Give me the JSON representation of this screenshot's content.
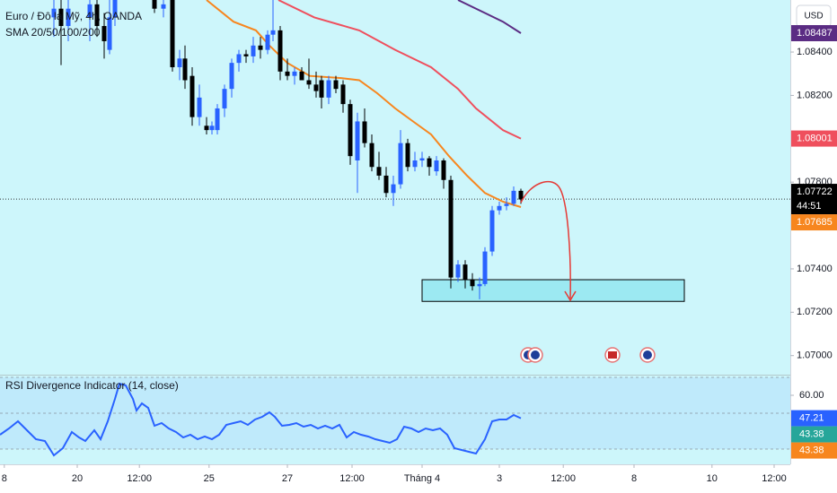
{
  "chart_data": [
    {
      "type": "candlestick",
      "title": "Euro / Đô la Mỹ, 4h, OANDA",
      "subtitle": "SMA 20/50/100/200",
      "currency": "USD",
      "countdown": "44:51",
      "xlim": [
        0,
        110
      ],
      "xticks": [
        {
          "value": 0.6,
          "label": "8"
        },
        {
          "value": 10.75,
          "label": "20"
        },
        {
          "value": 19.4,
          "label": "12:00"
        },
        {
          "value": 29.1,
          "label": "25"
        },
        {
          "value": 40,
          "label": "27"
        },
        {
          "value": 49,
          "label": "12:00"
        },
        {
          "value": 58.75,
          "label": "Tháng 4"
        },
        {
          "value": 69.5,
          "label": "3"
        },
        {
          "value": 78.4,
          "label": "12:00"
        },
        {
          "value": 88.25,
          "label": "8"
        },
        {
          "value": 99.1,
          "label": "10"
        },
        {
          "value": 107.75,
          "label": "12:00"
        }
      ],
      "ylim": [
        1.06912,
        1.0864
      ],
      "yticks": [
        {
          "value": 1.084,
          "label": "1.08400"
        },
        {
          "value": 1.082,
          "label": "1.08200"
        },
        {
          "value": 1.078,
          "label": "1.07800"
        },
        {
          "value": 1.074,
          "label": "1.07400"
        },
        {
          "value": 1.072,
          "label": "1.07200"
        },
        {
          "value": 1.07,
          "label": "1.07000"
        }
      ],
      "up_color": "#2962ff",
      "down_color": "#000000",
      "x": [
        7.5,
        8.5,
        9.5,
        12.5,
        13.5,
        14.5,
        15.25,
        16,
        21.5,
        22.75,
        24,
        25,
        25.75,
        26.75,
        27.75,
        28.75,
        29.5,
        30.25,
        31.25,
        32.25,
        33.25,
        34.25,
        35.25,
        36.25,
        37.25,
        38,
        39,
        40,
        41,
        42,
        43,
        44,
        44.75,
        45.75,
        46.75,
        47.75,
        48.75,
        49.75,
        50.75,
        51.75,
        52.75,
        53.75,
        54.75,
        55.75,
        56.75,
        57.75,
        58.75,
        59.75,
        60.75,
        61.75,
        62.75,
        63.75,
        64.75,
        65.75,
        66.75,
        67.5,
        68.5,
        69.5,
        70.5,
        71.5,
        72.5
      ],
      "open": [
        1.0856,
        1.086,
        1.0852,
        1.0856,
        1.0862,
        1.0852,
        1.0841,
        1.0856,
        1.0864,
        1.086,
        1.0864,
        1.0833,
        1.0837,
        1.0829,
        1.081,
        1.0806,
        1.0804,
        1.0804,
        1.0814,
        1.0823,
        1.0835,
        1.0839,
        1.0838,
        1.0843,
        1.0841,
        1.0848,
        1.085,
        1.0831,
        1.0829,
        1.0831,
        1.0827,
        1.0825,
        1.0827,
        1.0819,
        1.0827,
        1.0825,
        1.0816,
        1.079,
        1.0808,
        1.0798,
        1.0787,
        1.0783,
        1.0775,
        1.0779,
        1.0798,
        1.0787,
        1.079,
        1.0791,
        1.0785,
        1.079,
        1.0781,
        1.0736,
        1.0742,
        1.0735,
        1.0732,
        1.0733,
        1.0748,
        1.0767,
        1.0769,
        1.077,
        1.0776
      ],
      "high": [
        1.0864,
        1.0864,
        1.0864,
        1.0864,
        1.0864,
        1.0858,
        1.0864,
        1.0864,
        1.0864,
        1.0864,
        1.0864,
        1.0841,
        1.0843,
        1.0833,
        1.0825,
        1.081,
        1.0808,
        1.0816,
        1.0825,
        1.0837,
        1.0841,
        1.0841,
        1.0847,
        1.0847,
        1.085,
        1.0864,
        1.0852,
        1.0837,
        1.0833,
        1.0833,
        1.0837,
        1.0831,
        1.0829,
        1.0829,
        1.0829,
        1.0827,
        1.0818,
        1.0812,
        1.0814,
        1.0802,
        1.0794,
        1.0787,
        1.0783,
        1.0804,
        1.08,
        1.0794,
        1.0794,
        1.0792,
        1.0792,
        1.0791,
        1.0783,
        1.0744,
        1.0744,
        1.0738,
        1.0736,
        1.075,
        1.0769,
        1.0771,
        1.0773,
        1.0778,
        1.0777
      ],
      "low": [
        1.0847,
        1.0834,
        1.0845,
        1.0845,
        1.0847,
        1.0837,
        1.0839,
        1.0852,
        1.0858,
        1.0856,
        1.0831,
        1.0827,
        1.0823,
        1.0806,
        1.0806,
        1.0802,
        1.0802,
        1.0802,
        1.081,
        1.0819,
        1.0831,
        1.0835,
        1.0835,
        1.0837,
        1.0839,
        1.0845,
        1.0827,
        1.0827,
        1.0825,
        1.0827,
        1.0823,
        1.0819,
        1.0814,
        1.0816,
        1.0821,
        1.0812,
        1.0788,
        1.0775,
        1.0796,
        1.0785,
        1.0781,
        1.0773,
        1.0769,
        1.0777,
        1.0785,
        1.0785,
        1.0787,
        1.0783,
        1.0783,
        1.0777,
        1.0731,
        1.0734,
        1.0731,
        1.073,
        1.0726,
        1.0732,
        1.0746,
        1.0765,
        1.0767,
        1.0769,
        1.077
      ],
      "close": [
        1.086,
        1.0852,
        1.086,
        1.0862,
        1.0852,
        1.0845,
        1.0856,
        1.0864,
        1.086,
        1.0862,
        1.0833,
        1.0837,
        1.0827,
        1.081,
        1.0819,
        1.0804,
        1.0806,
        1.0814,
        1.0823,
        1.0835,
        1.0839,
        1.0838,
        1.0843,
        1.0841,
        1.0848,
        1.085,
        1.0831,
        1.0829,
        1.0831,
        1.0827,
        1.0825,
        1.0822,
        1.0819,
        1.0827,
        1.0823,
        1.0816,
        1.0792,
        1.0808,
        1.0798,
        1.0787,
        1.0783,
        1.0775,
        1.0779,
        1.0798,
        1.0787,
        1.079,
        1.0791,
        1.0787,
        1.079,
        1.0781,
        1.0736,
        1.0742,
        1.0735,
        1.0732,
        1.0733,
        1.0748,
        1.0767,
        1.0769,
        1.077,
        1.0776,
        1.0772
      ],
      "series": [
        {
          "color": "#f7861e",
          "x": [
            28.75,
            32.5,
            35.625,
            37.5,
            40,
            43.125,
            47.5,
            50,
            52.5,
            55,
            57.5,
            60,
            62.5,
            65,
            67.5,
            70,
            72.5
          ],
          "values": [
            1.0864,
            1.0854,
            1.085,
            1.0843,
            1.0835,
            1.0829,
            1.0828,
            1.0827,
            1.0821,
            1.0814,
            1.0808,
            1.0802,
            1.0792,
            1.0783,
            1.0775,
            1.0771,
            1.07685
          ]
        },
        {
          "color": "#ef4f5d",
          "x": [
            38.75,
            43.75,
            50,
            55,
            60,
            63.75,
            66.25,
            70,
            72.5
          ],
          "values": [
            1.0864,
            1.0856,
            1.085,
            1.0841,
            1.0833,
            1.0823,
            1.0814,
            1.0804,
            1.08001
          ]
        },
        {
          "color": "#5b2c83",
          "x": [
            63.75,
            67.5,
            70,
            72.5
          ],
          "values": [
            1.0864,
            1.0858,
            1.0854,
            1.08487
          ]
        }
      ],
      "last_price": 1.07722,
      "price_tags": [
        {
          "value": 1.08487,
          "color": "#5b2c83"
        },
        {
          "value": 1.08001,
          "color": "#ef4f5d"
        },
        {
          "value": 1.07722,
          "color": "#000000"
        },
        {
          "value": 1.07685,
          "color": "#f7861e"
        }
      ],
      "zone": {
        "xlim": [
          58.75,
          95.25
        ],
        "ylim": [
          1.0725,
          1.0735
        ],
        "color": "#9ce9f2"
      }
    },
    {
      "type": "line",
      "title": "RSI Divergence Indicator (14, close)",
      "ylim": [
        21.5,
        71.5
      ],
      "yticks": [
        {
          "value": 60,
          "label": "60.00"
        }
      ],
      "band": [
        30,
        70
      ],
      "midline": 50,
      "color": "#2962ff",
      "x": [
        0,
        1.25,
        2.5,
        3.75,
        5,
        6.25,
        7.5,
        8.75,
        10,
        11,
        11.875,
        13.125,
        14,
        15,
        16,
        16.625,
        17.5,
        18.5,
        19,
        19.75,
        20.625,
        21.5,
        22.5,
        23.5,
        24.5,
        25.5,
        26.5,
        27.5,
        28.5,
        29.5,
        30.5,
        31.5,
        32.5,
        33.5,
        34.5,
        35.5,
        36.5,
        37.5,
        38.25,
        39.25,
        40.25,
        41.25,
        42.25,
        43.25,
        44.25,
        45.25,
        46.25,
        47.25,
        48.25,
        49.25,
        50.25,
        51.25,
        52.25,
        53.25,
        54.25,
        55.25,
        56.25,
        57.25,
        58.25,
        59.25,
        60.25,
        61.25,
        62.25,
        63.25,
        64.25,
        65.25,
        66.25,
        67.5,
        68.5,
        69.5,
        70.5,
        71.5,
        72.5
      ],
      "values": [
        38,
        41.5,
        45.5,
        40.5,
        35.5,
        34.5,
        26.5,
        30.5,
        39.5,
        36.5,
        34.5,
        40.5,
        35.5,
        45.5,
        58,
        66.5,
        65.5,
        58,
        51.5,
        55.5,
        53,
        43,
        44.5,
        41.5,
        39.5,
        36.5,
        38,
        35.5,
        37,
        35.5,
        38,
        43.5,
        44.5,
        45.5,
        43.5,
        46.5,
        48,
        50.5,
        48,
        43,
        43.5,
        44.5,
        42.5,
        43.5,
        41.5,
        43,
        41.5,
        43.5,
        36.5,
        39.5,
        38,
        37,
        35.5,
        34.5,
        33.5,
        35.5,
        42.5,
        41.5,
        39.5,
        41.5,
        40.5,
        41.5,
        38,
        30.5,
        29.5,
        28.5,
        27.5,
        35.5,
        45.5,
        46.5,
        46.5,
        49,
        47.21
      ],
      "value_tags": [
        {
          "value": 47.21,
          "color": "#2962ff"
        },
        {
          "value": 43.38,
          "color": "#26a69a"
        },
        {
          "value": 43.38,
          "color": "#f7861e"
        }
      ]
    }
  ]
}
